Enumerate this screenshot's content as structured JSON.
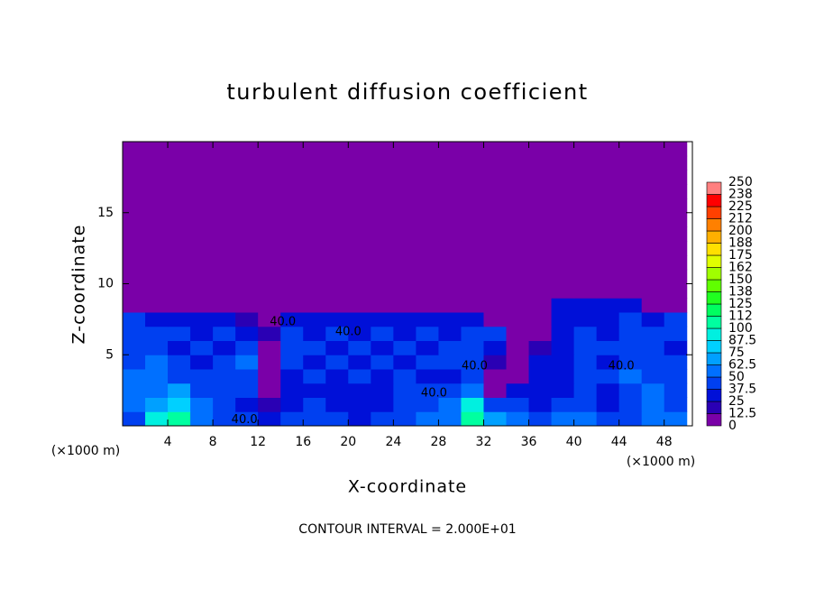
{
  "chart_data": {
    "type": "contour",
    "title": "turbulent diffusion coefficient",
    "xlabel": "X-coordinate",
    "ylabel": "Z-coordinate",
    "x_unit": "(×1000 m)",
    "footer": "CONTOUR INTERVAL = 2.000E+01",
    "xlim": [
      0,
      50.5
    ],
    "ylim": [
      0,
      20
    ],
    "xticks": [
      4,
      8,
      12,
      16,
      20,
      24,
      28,
      32,
      36,
      40,
      44,
      48
    ],
    "yticks": [
      5,
      10,
      15
    ],
    "x": [
      1,
      3,
      5,
      7,
      9,
      11,
      13,
      15,
      17,
      19,
      21,
      23,
      25,
      27,
      29,
      31,
      33,
      35,
      37,
      39,
      41,
      43,
      45,
      47,
      49
    ],
    "z": [
      0.5,
      1.5,
      2.5,
      3.5,
      4.5,
      5.5,
      6.5,
      7.5,
      8.5,
      9.5,
      10.5,
      11.5,
      12.5,
      13.5,
      14.5,
      15.5,
      16.5,
      17.5,
      18.5,
      19.5
    ],
    "values": [
      [
        45,
        90,
        100,
        60,
        45,
        40,
        35,
        40,
        45,
        40,
        35,
        40,
        45,
        50,
        60,
        110,
        70,
        50,
        45,
        60,
        55,
        40,
        40,
        60,
        50
      ],
      [
        50,
        70,
        75,
        55,
        40,
        35,
        20,
        35,
        40,
        35,
        30,
        35,
        40,
        45,
        55,
        90,
        45,
        40,
        35,
        45,
        40,
        35,
        40,
        55,
        45
      ],
      [
        60,
        55,
        65,
        45,
        40,
        40,
        10,
        30,
        35,
        30,
        30,
        35,
        40,
        45,
        40,
        60,
        10,
        35,
        30,
        35,
        40,
        35,
        45,
        50,
        45
      ],
      [
        55,
        50,
        45,
        40,
        45,
        45,
        5,
        30,
        40,
        35,
        40,
        30,
        40,
        30,
        35,
        45,
        5,
        5,
        30,
        35,
        45,
        40,
        50,
        45,
        40
      ],
      [
        45,
        55,
        40,
        35,
        40,
        50,
        5,
        40,
        35,
        40,
        35,
        40,
        35,
        40,
        45,
        45,
        20,
        5,
        25,
        30,
        40,
        35,
        45,
        40,
        45
      ],
      [
        40,
        40,
        35,
        40,
        35,
        40,
        10,
        40,
        40,
        35,
        40,
        35,
        40,
        35,
        40,
        40,
        35,
        5,
        20,
        35,
        40,
        45,
        40,
        40,
        35
      ],
      [
        45,
        40,
        40,
        35,
        40,
        35,
        20,
        40,
        35,
        40,
        35,
        40,
        35,
        40,
        35,
        40,
        40,
        5,
        5,
        30,
        40,
        35,
        40,
        45,
        40
      ],
      [
        40,
        35,
        35,
        30,
        30,
        20,
        5,
        30,
        35,
        30,
        35,
        30,
        25,
        30,
        30,
        30,
        5,
        0,
        5,
        30,
        35,
        35,
        40,
        35,
        40
      ],
      [
        0,
        0,
        0,
        0,
        0,
        0,
        0,
        0,
        0,
        0,
        0,
        0,
        0,
        0,
        0,
        0,
        0,
        0,
        0,
        25,
        35,
        35,
        30,
        5,
        0
      ],
      [
        0,
        0,
        0,
        0,
        0,
        0,
        0,
        0,
        0,
        0,
        0,
        0,
        0,
        0,
        0,
        0,
        0,
        0,
        0,
        0,
        10,
        10,
        0,
        0,
        0
      ],
      [
        0,
        0,
        0,
        0,
        0,
        0,
        0,
        0,
        0,
        0,
        0,
        0,
        0,
        0,
        0,
        0,
        0,
        0,
        0,
        0,
        0,
        0,
        0,
        0,
        0
      ],
      [
        0,
        0,
        0,
        0,
        0,
        0,
        0,
        0,
        0,
        0,
        0,
        0,
        0,
        0,
        0,
        0,
        0,
        0,
        0,
        0,
        0,
        0,
        0,
        0,
        0
      ],
      [
        0,
        0,
        0,
        0,
        0,
        0,
        0,
        0,
        0,
        0,
        0,
        0,
        0,
        0,
        0,
        0,
        0,
        0,
        0,
        0,
        0,
        0,
        0,
        0,
        0
      ],
      [
        0,
        0,
        0,
        0,
        0,
        0,
        0,
        0,
        0,
        0,
        0,
        0,
        0,
        0,
        0,
        0,
        0,
        0,
        0,
        0,
        0,
        0,
        0,
        0,
        0
      ],
      [
        0,
        0,
        0,
        0,
        0,
        0,
        0,
        0,
        0,
        0,
        0,
        0,
        0,
        0,
        0,
        0,
        0,
        0,
        0,
        0,
        0,
        0,
        0,
        0,
        0
      ],
      [
        0,
        0,
        0,
        0,
        0,
        0,
        0,
        0,
        0,
        0,
        0,
        0,
        0,
        0,
        0,
        0,
        0,
        0,
        0,
        0,
        0,
        0,
        0,
        0,
        0
      ],
      [
        0,
        0,
        0,
        0,
        0,
        0,
        0,
        0,
        0,
        0,
        0,
        0,
        0,
        0,
        0,
        0,
        0,
        0,
        0,
        0,
        0,
        0,
        0,
        0,
        0
      ],
      [
        0,
        0,
        0,
        0,
        0,
        0,
        0,
        0,
        0,
        0,
        0,
        0,
        0,
        0,
        0,
        0,
        0,
        0,
        0,
        0,
        0,
        0,
        0,
        0,
        0
      ],
      [
        0,
        0,
        0,
        0,
        0,
        0,
        0,
        0,
        0,
        0,
        0,
        0,
        0,
        0,
        0,
        0,
        0,
        0,
        0,
        0,
        0,
        0,
        0,
        0,
        0
      ],
      [
        0,
        0,
        0,
        0,
        0,
        0,
        0,
        0,
        0,
        0,
        0,
        0,
        0,
        0,
        0,
        0,
        0,
        0,
        0,
        0,
        0,
        0,
        0,
        0,
        0
      ]
    ],
    "contour_labels": [
      {
        "text": "40.0",
        "x": 10.8,
        "z": 0.4
      },
      {
        "text": "40.0",
        "x": 14.2,
        "z": 7.3
      },
      {
        "text": "40.0",
        "x": 20,
        "z": 6.6
      },
      {
        "text": "40.0",
        "x": 27.6,
        "z": 2.3
      },
      {
        "text": "40.0",
        "x": 31.2,
        "z": 4.2
      },
      {
        "text": "40.0",
        "x": 44.2,
        "z": 4.2
      }
    ],
    "colorbar": {
      "ticks": [
        0,
        12.5,
        25,
        37.5,
        50,
        62.5,
        75,
        87.5,
        100,
        112,
        125,
        138,
        150,
        162,
        175,
        188,
        200,
        212,
        225,
        238,
        250
      ],
      "colors": [
        "#7a00a8",
        "#2a00b4",
        "#0010d8",
        "#0040f0",
        "#0070ff",
        "#00a0ff",
        "#00d0ff",
        "#00f0e0",
        "#00ffa0",
        "#00ff60",
        "#20ff20",
        "#60ff00",
        "#a0ff00",
        "#e0ff00",
        "#ffe000",
        "#ffb000",
        "#ff8000",
        "#ff4000",
        "#ff0000",
        "#ff8080"
      ]
    }
  }
}
